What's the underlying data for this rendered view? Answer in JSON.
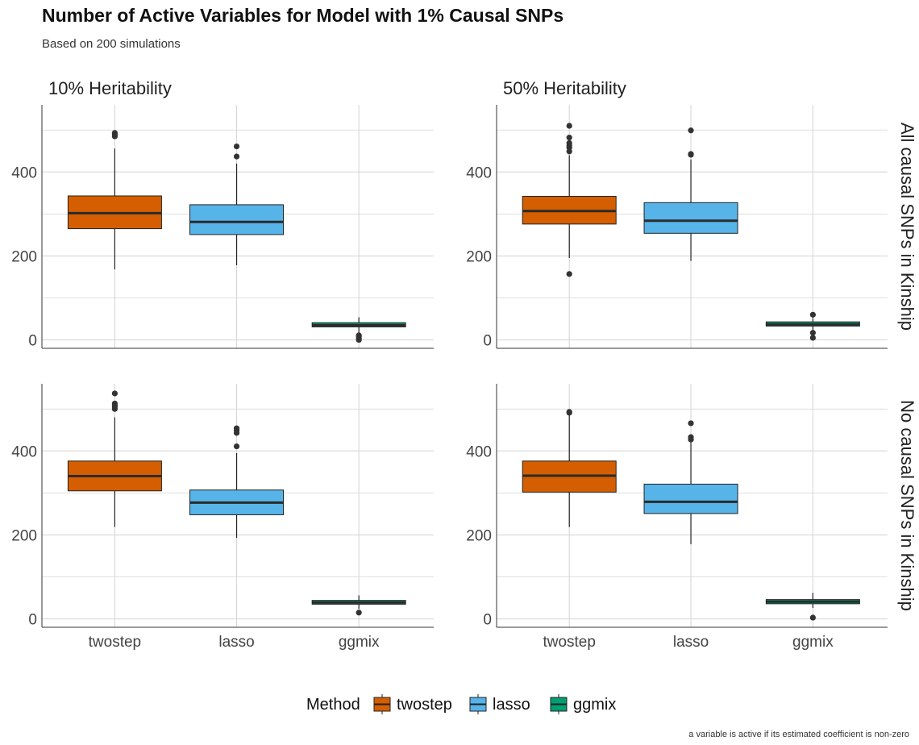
{
  "title": "Number of Active Variables for Model with 1% Causal SNPs",
  "subtitle": "Based on 200 simulations",
  "caption": "a variable is active if its estimated coefficient is non-zero",
  "legend": {
    "title": "Method"
  },
  "colors": {
    "twostep": "#D55E00",
    "lasso": "#56B4E9",
    "ggmix": "#009E73",
    "grid": "#d4d4d4",
    "axis": "#333333"
  },
  "chart_data": {
    "type": "box",
    "categories": [
      "twostep",
      "lasso",
      "ggmix"
    ],
    "facet_cols": [
      "10% Heritability",
      "50% Heritability"
    ],
    "facet_rows": [
      "All causal SNPs in Kinship",
      "No causal SNPs in Kinship"
    ],
    "yticks": [
      0,
      200,
      400
    ],
    "ylim": [
      -20,
      560
    ],
    "grid": true,
    "legend_position": "bottom",
    "panels": [
      {
        "col": 0,
        "row": 0,
        "boxes": [
          {
            "name": "twostep",
            "q1": 265,
            "median": 302,
            "q3": 343,
            "whisker_low": 168,
            "whisker_high": 456,
            "outliers": [
              485,
              490,
              493
            ]
          },
          {
            "name": "lasso",
            "q1": 251,
            "median": 281,
            "q3": 322,
            "whisker_low": 178,
            "whisker_high": 420,
            "outliers": [
              437,
              461
            ]
          },
          {
            "name": "ggmix",
            "q1": 31,
            "median": 35,
            "q3": 41,
            "whisker_low": 16,
            "whisker_high": 54,
            "outliers": [
              0,
              4,
              8,
              11
            ]
          }
        ]
      },
      {
        "col": 1,
        "row": 0,
        "boxes": [
          {
            "name": "twostep",
            "q1": 276,
            "median": 307,
            "q3": 342,
            "whisker_low": 195,
            "whisker_high": 440,
            "outliers": [
              157,
              449,
              458,
              463,
              469,
              482,
              510
            ]
          },
          {
            "name": "lasso",
            "q1": 254,
            "median": 284,
            "q3": 327,
            "whisker_low": 188,
            "whisker_high": 430,
            "outliers": [
              441,
              443,
              499
            ]
          },
          {
            "name": "ggmix",
            "q1": 33,
            "median": 37,
            "q3": 43,
            "whisker_low": 24,
            "whisker_high": 52,
            "outliers": [
              5,
              17,
              60
            ]
          }
        ]
      },
      {
        "col": 0,
        "row": 1,
        "boxes": [
          {
            "name": "twostep",
            "q1": 305,
            "median": 340,
            "q3": 376,
            "whisker_low": 219,
            "whisker_high": 480,
            "outliers": [
              500,
              505,
              510,
              513,
              537
            ]
          },
          {
            "name": "lasso",
            "q1": 248,
            "median": 277,
            "q3": 307,
            "whisker_low": 193,
            "whisker_high": 395,
            "outliers": [
              411,
              443,
              449,
              454
            ]
          },
          {
            "name": "ggmix",
            "q1": 35,
            "median": 39,
            "q3": 44,
            "whisker_low": 24,
            "whisker_high": 56,
            "outliers": [
              15
            ]
          }
        ]
      },
      {
        "col": 1,
        "row": 1,
        "boxes": [
          {
            "name": "twostep",
            "q1": 302,
            "median": 341,
            "q3": 376,
            "whisker_low": 219,
            "whisker_high": 485,
            "outliers": [
              491,
              493
            ]
          },
          {
            "name": "lasso",
            "q1": 251,
            "median": 279,
            "q3": 321,
            "whisker_low": 178,
            "whisker_high": 420,
            "outliers": [
              427,
              433,
              466
            ]
          },
          {
            "name": "ggmix",
            "q1": 36,
            "median": 41,
            "q3": 46,
            "whisker_low": 26,
            "whisker_high": 62,
            "outliers": [
              3
            ]
          }
        ]
      }
    ]
  }
}
